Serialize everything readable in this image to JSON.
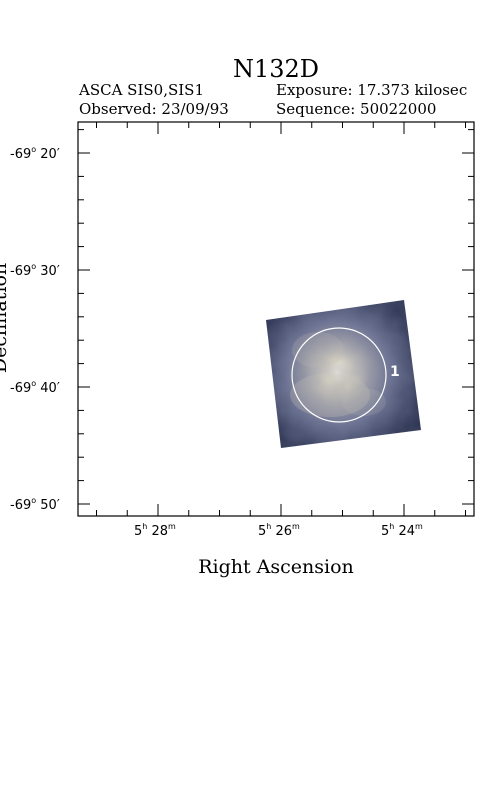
{
  "header": {
    "title": "N132D",
    "instrument": "ASCA SIS0,SIS1",
    "exposure": "Exposure: 17.373 kilosec",
    "observed": "Observed: 23/09/93",
    "sequence": "Sequence: 50022000"
  },
  "axes": {
    "xlabel": "Right Ascension",
    "ylabel": "Declination",
    "x_ticks": [
      {
        "h": "5",
        "m": "28"
      },
      {
        "h": "5",
        "m": "26"
      },
      {
        "h": "5",
        "m": "24"
      }
    ],
    "y_ticks": [
      {
        "deg": "-69",
        "min": "20"
      },
      {
        "deg": "-69",
        "min": "30"
      },
      {
        "deg": "-69",
        "min": "40"
      },
      {
        "deg": "-69",
        "min": "50"
      }
    ]
  },
  "source_region": {
    "label": "1"
  },
  "colors": {
    "image_edge": "#2b3350",
    "image_mid": "#6f7591",
    "image_core": "#f4f1e3",
    "region_circle": "#ffffff",
    "frame": "#000000"
  }
}
